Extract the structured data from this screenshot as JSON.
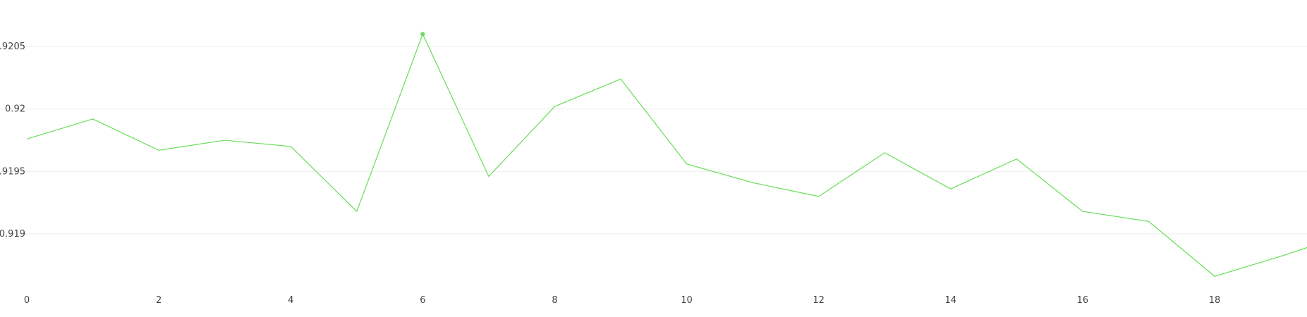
{
  "chart_data": {
    "type": "line",
    "title": "",
    "xlabel": "",
    "ylabel": "",
    "grid": true,
    "legend": "none",
    "xlim": [
      0,
      19.4
    ],
    "ylim": [
      0.91856,
      0.92076
    ],
    "x_ticks": [
      0,
      2,
      4,
      6,
      8,
      10,
      12,
      14,
      16,
      18
    ],
    "x_tick_labels": [
      "0",
      "2",
      "4",
      "6",
      "8",
      "10",
      "12",
      "14",
      "16",
      "18"
    ],
    "y_ticks": [
      0.919,
      0.9195,
      0.92,
      0.9205
    ],
    "y_tick_labels": [
      "0.919",
      "0.9195",
      "0.92",
      "0.9205"
    ],
    "series": [
      {
        "color": "#66dd55",
        "highlight_index": 6,
        "x": [
          0,
          1,
          2,
          3,
          4,
          5,
          6,
          7,
          8,
          9,
          10,
          11,
          12,
          13,
          14,
          15,
          16,
          17,
          18,
          19,
          19.4
        ],
        "values": [
          0.91976,
          0.91992,
          0.91967,
          0.91975,
          0.9197,
          0.91918,
          0.9206,
          0.91946,
          0.92002,
          0.92024,
          0.91956,
          0.91941,
          0.9193,
          0.91965,
          0.91936,
          0.9196,
          0.91918,
          0.9191,
          0.91866,
          0.91882,
          0.91889
        ]
      }
    ]
  }
}
